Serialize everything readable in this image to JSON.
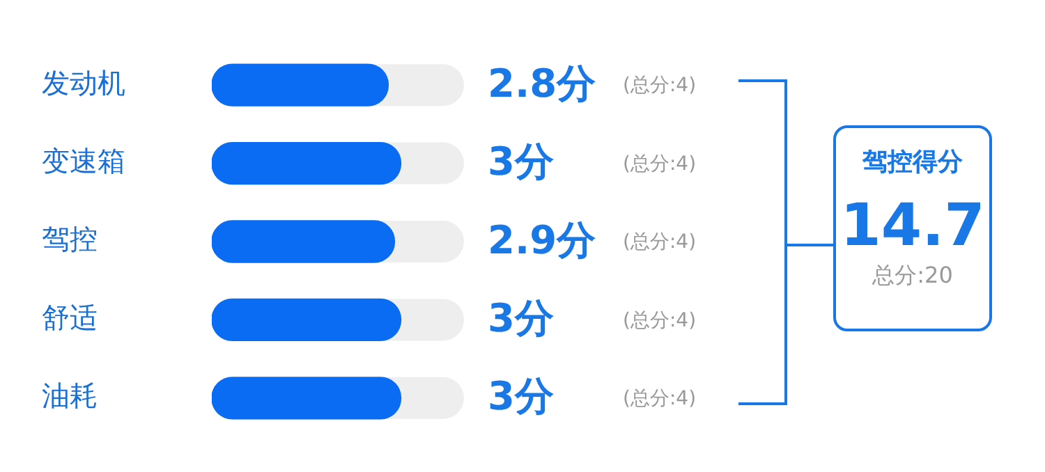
{
  "chart_data": {
    "type": "bar",
    "orientation": "horizontal",
    "categories": [
      "发动机",
      "变速箱",
      "驾控",
      "舒适",
      "油耗"
    ],
    "values": [
      2.8,
      3,
      2.9,
      3,
      3
    ],
    "value_labels": [
      "2.8分",
      "3分",
      "2.9分",
      "3分",
      "3分"
    ],
    "color": "#0a6cf2",
    "xlim": [
      0,
      4
    ],
    "tick_labels": "y",
    "legend": false,
    "annotations": [
      "(总分:4)",
      "(总分:4)",
      "(总分:4)",
      "(总分:4)",
      "(总分:4)",
      "驾控得分",
      "14.7",
      "总分:20"
    ]
  }
}
